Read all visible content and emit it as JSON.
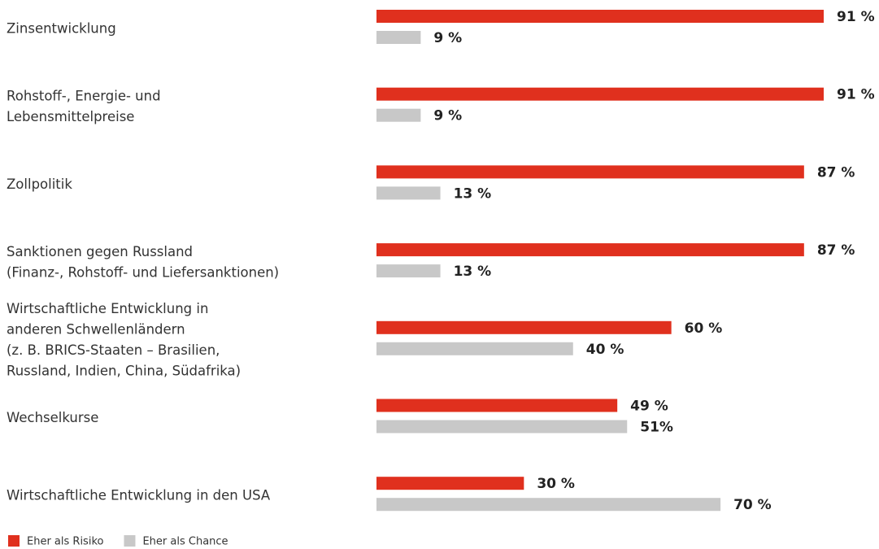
{
  "chart_data": {
    "type": "bar",
    "orientation": "horizontal",
    "categories": [
      [
        "Zinsentwicklung"
      ],
      [
        "Rohstoff-, Energie- und",
        "Lebensmittelpreise"
      ],
      [
        "Zollpolitik"
      ],
      [
        "Sanktionen gegen Russland",
        "(Finanz-, Rohstoff- und Liefersanktionen)"
      ],
      [
        "Wirtschaftliche Entwicklung in",
        "anderen Schwellenländern",
        "(z. B. BRICS-Staaten – Brasilien,",
        "Russland, Indien, China, Südafrika)"
      ],
      [
        "Wechselkurse"
      ],
      [
        "Wirtschaftliche Entwicklung in den USA"
      ]
    ],
    "series": [
      {
        "name": "Eher als Risiko",
        "color": "#e0301e",
        "values": [
          91,
          91,
          87,
          87,
          60,
          49,
          30
        ],
        "value_labels": [
          "91 %",
          "91 %",
          "87 %",
          "87 %",
          "60 %",
          "49 %",
          "30 %"
        ]
      },
      {
        "name": "Eher als Chance",
        "color": "#c8c8c8",
        "values": [
          9,
          9,
          13,
          13,
          40,
          51,
          70
        ],
        "value_labels": [
          "9 %",
          "9 %",
          "13 %",
          "13 %",
          "40 %",
          "51%",
          "70 %"
        ]
      }
    ],
    "xlim": [
      0,
      100
    ]
  }
}
